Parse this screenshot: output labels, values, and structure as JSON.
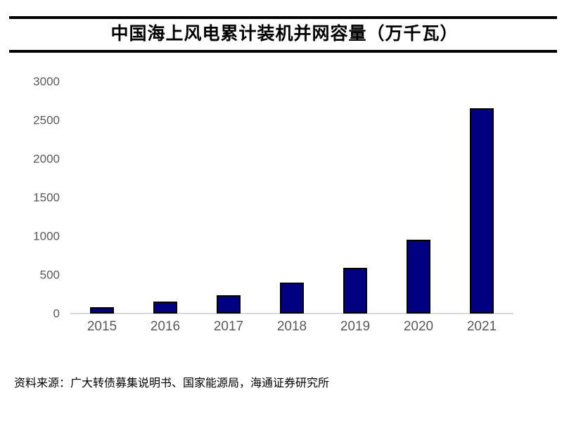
{
  "chart_data": {
    "type": "bar",
    "title": "中国海上风电累计装机并网容量（万千瓦）",
    "categories": [
      "2015",
      "2016",
      "2017",
      "2018",
      "2019",
      "2020",
      "2021"
    ],
    "values": [
      80,
      150,
      240,
      400,
      590,
      950,
      2650
    ],
    "xlabel": "",
    "ylabel": "",
    "ylim": [
      0,
      3000
    ],
    "yticks": [
      0,
      500,
      1000,
      1500,
      2000,
      2500,
      3000
    ],
    "grid": false,
    "legend": false,
    "bar_color": "#000080",
    "bar_border_color": "#000000",
    "axis_line_color": "#d9d9d9",
    "tick_label_color": "#595959",
    "title_rule_color": "#000000"
  },
  "source": {
    "text": "资料来源：广大转债募集说明书、国家能源局，海通证券研究所"
  }
}
